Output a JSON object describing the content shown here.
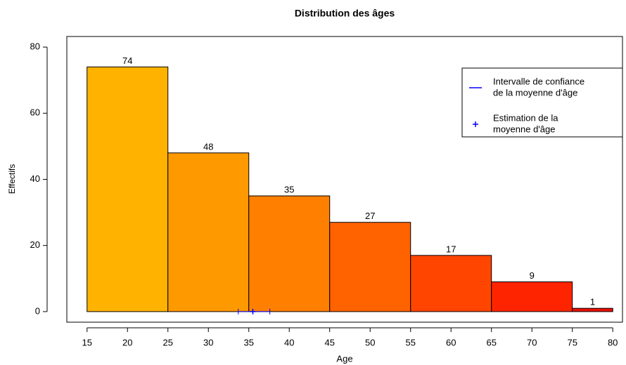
{
  "chart_data": {
    "type": "histogram",
    "title": "Distribution des âges",
    "x_label": "Age",
    "y_label": "Effectifs",
    "bins": [
      15,
      25,
      35,
      45,
      55,
      65,
      75,
      80
    ],
    "values": [
      74,
      48,
      35,
      27,
      17,
      9,
      1
    ],
    "colors": [
      "#FFB300",
      "#FF9900",
      "#FF7F00",
      "#FF6300",
      "#FF4500",
      "#FF2400",
      "#EE0E00"
    ],
    "xlim": [
      12.5,
      81.2
    ],
    "xticks": [
      15,
      20,
      25,
      30,
      35,
      40,
      45,
      50,
      55,
      60,
      65,
      70,
      75,
      80
    ],
    "ylim": [
      -3.2,
      83.2
    ],
    "yticks": [
      0,
      20,
      40,
      60,
      80
    ],
    "confidence_interval": [
      33.7,
      37.6
    ],
    "mean_estimate": 35.5,
    "marker_color": "#0000FF",
    "legend_position": "top-right",
    "legend": [
      {
        "lines": [
          "Intervalle de confiance",
          "de la moyenne d'âge"
        ],
        "symbol": "line"
      },
      {
        "lines": [
          "Estimation de la",
          "moyenne d'âge"
        ],
        "symbol": "plus"
      }
    ]
  }
}
